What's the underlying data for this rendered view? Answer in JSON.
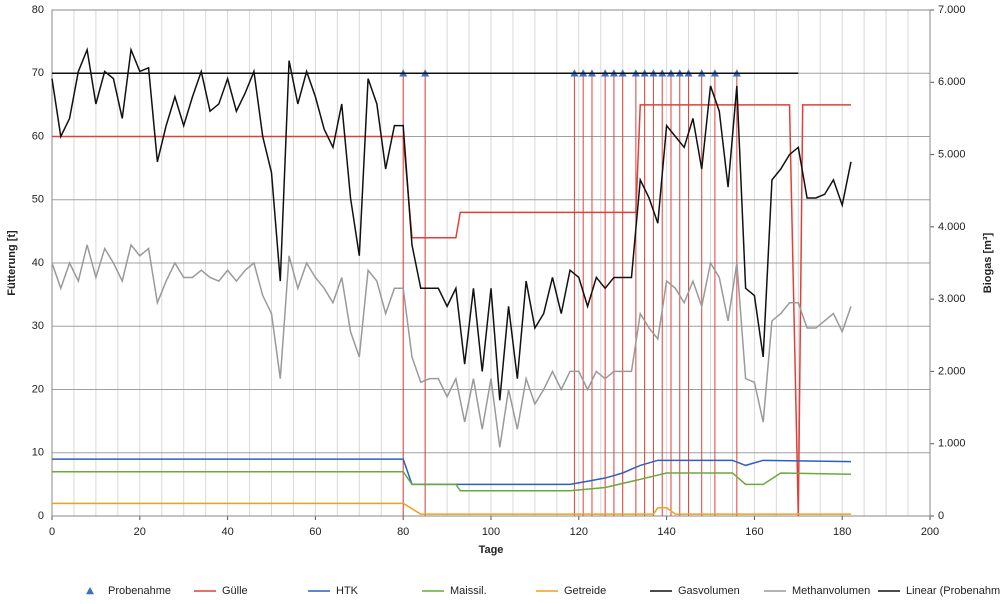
{
  "chart_data": {
    "type": "line",
    "xlabel": "Tage",
    "ylabel": "Fütterung [t]",
    "y2label": "Biogas [m³]",
    "xlim": [
      0,
      200
    ],
    "xticks": [
      0,
      20,
      40,
      60,
      80,
      100,
      120,
      140,
      160,
      180,
      200
    ],
    "xgrid_step": 5,
    "ylim": [
      0,
      80
    ],
    "yticks": [
      0,
      10,
      20,
      30,
      40,
      50,
      60,
      70,
      80
    ],
    "y2lim": [
      0,
      7000
    ],
    "y2ticks": [
      0,
      {
        "value": 1000,
        "label": "1.000"
      },
      {
        "value": 2000,
        "label": "2.000"
      },
      {
        "value": 3000,
        "label": "3.000"
      },
      {
        "value": 4000,
        "label": "4.000"
      },
      {
        "value": 5000,
        "label": "5.000"
      },
      {
        "value": 6000,
        "label": "6.000"
      },
      {
        "value": 7000,
        "label": "7.000"
      }
    ],
    "grid": true,
    "legend": "bottom",
    "series": [
      {
        "name": "Probenahme",
        "color": "#3a6fc4",
        "line": false,
        "marker": "triangle",
        "drop_lines": "#e0403a",
        "x": [
          80,
          85,
          119,
          121,
          123,
          126,
          128,
          130,
          133,
          135,
          137,
          139,
          141,
          143,
          145,
          148,
          151,
          156
        ],
        "values": [
          70,
          70,
          70,
          70,
          70,
          70,
          70,
          70,
          70,
          70,
          70,
          70,
          70,
          70,
          70,
          70,
          70,
          70
        ]
      },
      {
        "name": "Gülle",
        "color": "#e0403a",
        "line": true,
        "x": [
          0,
          80,
          82,
          92,
          93,
          133,
          134,
          168,
          170,
          171,
          182
        ],
        "values": [
          60,
          60,
          44,
          44,
          48,
          48,
          65,
          65,
          0,
          65,
          65
        ]
      },
      {
        "name": "HTK",
        "color": "#2d5fc0",
        "line": true,
        "x": [
          0,
          80,
          82,
          118,
          122,
          126,
          130,
          134,
          138,
          155,
          158,
          162,
          182
        ],
        "values": [
          9,
          9,
          5,
          5,
          5.5,
          6,
          6.8,
          8,
          8.8,
          8.8,
          8,
          8.8,
          8.6
        ]
      },
      {
        "name": "Maissil.",
        "color": "#6aaa3a",
        "line": true,
        "x": [
          0,
          80,
          82,
          92,
          93,
          118,
          126,
          134,
          140,
          155,
          158,
          162,
          166,
          182
        ],
        "values": [
          7,
          7,
          5,
          5,
          4,
          4,
          4.5,
          5.8,
          6.8,
          6.8,
          5,
          5,
          6.8,
          6.6
        ]
      },
      {
        "name": "Getreide",
        "color": "#f0a020",
        "line": true,
        "x": [
          0,
          80,
          84,
          137,
          138,
          140,
          142,
          182
        ],
        "values": [
          2,
          2,
          0.3,
          0.3,
          1.3,
          1.3,
          0.3,
          0.3
        ]
      },
      {
        "name": "Gasvolumen",
        "color": "#111111",
        "line": true,
        "axis": "y2",
        "x": [
          0,
          2,
          4,
          6,
          8,
          10,
          12,
          14,
          16,
          18,
          20,
          22,
          24,
          26,
          28,
          30,
          32,
          34,
          36,
          38,
          40,
          42,
          44,
          46,
          48,
          50,
          52,
          54,
          56,
          58,
          60,
          62,
          64,
          66,
          68,
          70,
          72,
          74,
          76,
          78,
          80,
          82,
          84,
          86,
          88,
          90,
          92,
          94,
          96,
          98,
          100,
          102,
          104,
          106,
          108,
          110,
          112,
          114,
          116,
          118,
          120,
          122,
          124,
          126,
          128,
          130,
          132,
          134,
          136,
          138,
          140,
          142,
          144,
          146,
          148,
          150,
          152,
          154,
          156,
          158,
          160,
          162,
          164,
          166,
          168,
          170,
          172,
          174,
          176,
          178,
          180,
          182
        ],
        "values": [
          6050,
          5250,
          5500,
          6150,
          6450,
          5700,
          6150,
          6050,
          5500,
          6450,
          6150,
          6200,
          4900,
          5400,
          5800,
          5400,
          5800,
          6150,
          5600,
          5700,
          6050,
          5600,
          5850,
          6150,
          5250,
          4750,
          3250,
          6300,
          5700,
          6150,
          5800,
          5350,
          5100,
          5700,
          4400,
          3600,
          6050,
          5700,
          4800,
          5400,
          5400,
          3750,
          3150,
          3150,
          3150,
          2900,
          3150,
          2100,
          3150,
          2000,
          3150,
          1600,
          2900,
          1900,
          3250,
          2600,
          2800,
          3300,
          2800,
          3400,
          3300,
          2900,
          3300,
          3150,
          3300,
          3300,
          3300,
          4650,
          4400,
          4050,
          5400,
          5250,
          5100,
          5500,
          4800,
          5950,
          5600,
          4550,
          5950,
          3150,
          3050,
          2200,
          4650,
          4800,
          5000,
          5100,
          4400,
          4400,
          4450,
          4650,
          4300,
          4900
        ]
      },
      {
        "name": "Methanvolumen",
        "color": "#9a9a9a",
        "line": true,
        "axis": "y2",
        "x": [
          0,
          2,
          4,
          6,
          8,
          10,
          12,
          14,
          16,
          18,
          20,
          22,
          24,
          26,
          28,
          30,
          32,
          34,
          36,
          38,
          40,
          42,
          44,
          46,
          48,
          50,
          52,
          54,
          56,
          58,
          60,
          62,
          64,
          66,
          68,
          70,
          72,
          74,
          76,
          78,
          80,
          82,
          84,
          86,
          88,
          90,
          92,
          94,
          96,
          98,
          100,
          102,
          104,
          106,
          108,
          110,
          112,
          114,
          116,
          118,
          120,
          122,
          124,
          126,
          128,
          130,
          132,
          134,
          136,
          138,
          140,
          142,
          144,
          146,
          148,
          150,
          152,
          154,
          156,
          158,
          160,
          162,
          164,
          166,
          168,
          170,
          172,
          174,
          176,
          178,
          180,
          182
        ],
        "values": [
          3500,
          3150,
          3500,
          3250,
          3750,
          3300,
          3700,
          3500,
          3250,
          3750,
          3600,
          3700,
          2950,
          3250,
          3500,
          3300,
          3300,
          3400,
          3300,
          3250,
          3400,
          3250,
          3400,
          3500,
          3050,
          2800,
          1900,
          3600,
          3150,
          3500,
          3300,
          3150,
          2950,
          3300,
          2550,
          2200,
          3400,
          3250,
          2800,
          3150,
          3150,
          2200,
          1850,
          1900,
          1900,
          1650,
          1900,
          1300,
          1900,
          1200,
          1900,
          950,
          1750,
          1200,
          1900,
          1550,
          1750,
          2000,
          1750,
          2000,
          2000,
          1750,
          2000,
          1900,
          2000,
          2000,
          2000,
          2800,
          2600,
          2450,
          3250,
          3150,
          2950,
          3250,
          2900,
          3500,
          3300,
          2700,
          3500,
          1900,
          1850,
          1300,
          2700,
          2800,
          2950,
          2950,
          2600,
          2600,
          2700,
          2800,
          2550,
          2900
        ]
      },
      {
        "name": "Linear (Probenahme)",
        "color": "#111111",
        "line": true,
        "x": [
          0,
          170
        ],
        "values": [
          70,
          70
        ]
      }
    ]
  }
}
